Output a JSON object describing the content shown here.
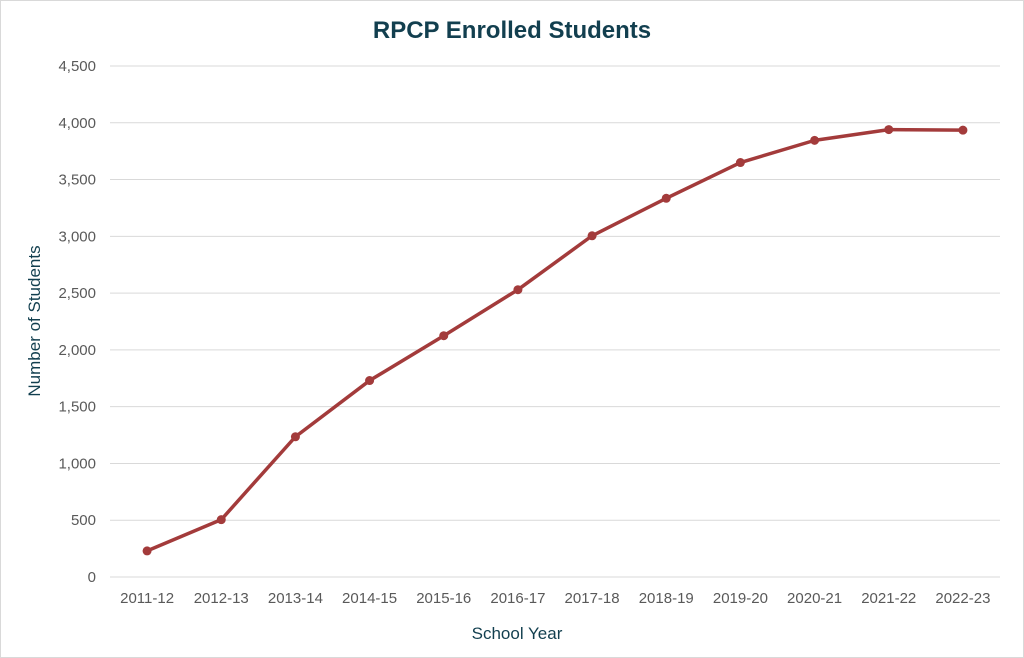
{
  "chart_data": {
    "type": "line",
    "title": "RPCP Enrolled Students",
    "xlabel": "School Year",
    "ylabel": "Number of Students",
    "categories": [
      "2011-12",
      "2012-13",
      "2013-14",
      "2014-15",
      "2015-16",
      "2016-17",
      "2017-18",
      "2018-19",
      "2019-20",
      "2020-21",
      "2021-22",
      "2022-23"
    ],
    "series": [
      {
        "values": [
          230,
          505,
          1235,
          1730,
          2125,
          2530,
          3005,
          3335,
          3650,
          3845,
          3940,
          3935
        ]
      }
    ],
    "ylim": [
      0,
      4500
    ],
    "yticks": [
      0,
      500,
      1000,
      1500,
      2000,
      2500,
      3000,
      3500,
      4000,
      4500
    ],
    "ytick_labels": [
      "0",
      "500",
      "1,000",
      "1,500",
      "2,000",
      "2,500",
      "3,000",
      "3,500",
      "4,000",
      "4,500"
    ],
    "grid": true,
    "legend": "none",
    "colors": {
      "line": "#a33b3b",
      "grid": "#d9d9d9",
      "title": "#123f4f"
    }
  }
}
